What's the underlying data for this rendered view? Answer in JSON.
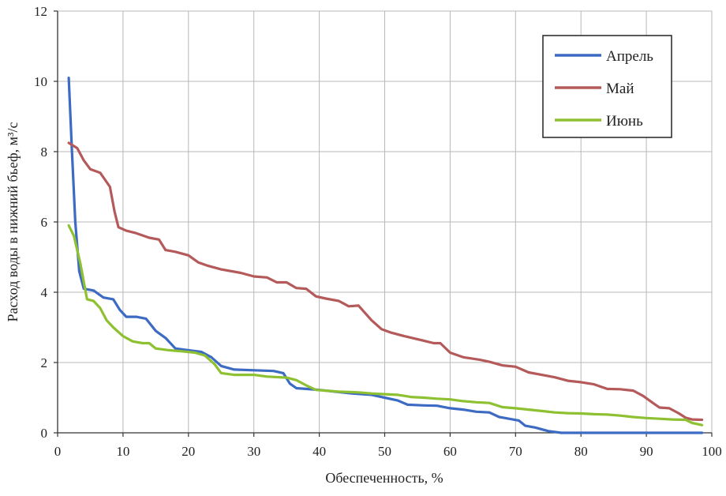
{
  "chart_data": {
    "type": "line",
    "title": "",
    "xlabel": "Обеспеченность, %",
    "ylabel": "Расход воды в нижний бьеф, м³/с",
    "xlim": [
      0,
      100
    ],
    "ylim": [
      0,
      12
    ],
    "xticks": [
      0,
      10,
      20,
      30,
      40,
      50,
      60,
      70,
      80,
      90,
      100
    ],
    "yticks": [
      0,
      2,
      4,
      6,
      8,
      10,
      12
    ],
    "grid": true,
    "legend_position": "top-right",
    "series": [
      {
        "name": "Апрель",
        "color": "#3d6bc4",
        "points": [
          [
            1.7,
            10.1
          ],
          [
            2.2,
            8.0
          ],
          [
            2.7,
            6.0
          ],
          [
            3.3,
            4.6
          ],
          [
            4.0,
            4.1
          ],
          [
            5.5,
            4.05
          ],
          [
            7.0,
            3.85
          ],
          [
            8.5,
            3.8
          ],
          [
            9.5,
            3.5
          ],
          [
            10.5,
            3.3
          ],
          [
            12.0,
            3.3
          ],
          [
            13.5,
            3.25
          ],
          [
            15.0,
            2.9
          ],
          [
            16.5,
            2.7
          ],
          [
            18.0,
            2.4
          ],
          [
            20.0,
            2.35
          ],
          [
            22.0,
            2.3
          ],
          [
            23.5,
            2.15
          ],
          [
            25.0,
            1.9
          ],
          [
            27.0,
            1.8
          ],
          [
            30.0,
            1.78
          ],
          [
            33.0,
            1.76
          ],
          [
            34.5,
            1.7
          ],
          [
            35.5,
            1.4
          ],
          [
            36.5,
            1.27
          ],
          [
            38.0,
            1.25
          ],
          [
            40.0,
            1.22
          ],
          [
            42.0,
            1.18
          ],
          [
            45.0,
            1.12
          ],
          [
            48.0,
            1.08
          ],
          [
            50.0,
            1.0
          ],
          [
            52.0,
            0.92
          ],
          [
            53.5,
            0.8
          ],
          [
            56.0,
            0.78
          ],
          [
            58.0,
            0.77
          ],
          [
            60.0,
            0.7
          ],
          [
            62.0,
            0.66
          ],
          [
            64.0,
            0.6
          ],
          [
            66.0,
            0.58
          ],
          [
            67.5,
            0.45
          ],
          [
            69.0,
            0.4
          ],
          [
            70.5,
            0.35
          ],
          [
            71.5,
            0.2
          ],
          [
            73.0,
            0.15
          ],
          [
            75.0,
            0.05
          ],
          [
            77.0,
            0.0
          ],
          [
            90.0,
            0.0
          ],
          [
            98.5,
            0.0
          ]
        ]
      },
      {
        "name": "Май",
        "color": "#b55a5a",
        "points": [
          [
            1.7,
            8.25
          ],
          [
            3.0,
            8.1
          ],
          [
            4.0,
            7.75
          ],
          [
            5.0,
            7.5
          ],
          [
            6.5,
            7.4
          ],
          [
            8.0,
            7.0
          ],
          [
            8.7,
            6.3
          ],
          [
            9.3,
            5.85
          ],
          [
            10.5,
            5.75
          ],
          [
            12.0,
            5.68
          ],
          [
            14.0,
            5.55
          ],
          [
            15.5,
            5.5
          ],
          [
            16.5,
            5.2
          ],
          [
            18.0,
            5.15
          ],
          [
            20.0,
            5.05
          ],
          [
            21.5,
            4.85
          ],
          [
            23.0,
            4.75
          ],
          [
            25.0,
            4.65
          ],
          [
            28.0,
            4.55
          ],
          [
            30.0,
            4.45
          ],
          [
            32.0,
            4.42
          ],
          [
            33.5,
            4.28
          ],
          [
            35.0,
            4.28
          ],
          [
            36.5,
            4.12
          ],
          [
            38.0,
            4.1
          ],
          [
            39.5,
            3.88
          ],
          [
            41.0,
            3.82
          ],
          [
            43.0,
            3.75
          ],
          [
            44.5,
            3.6
          ],
          [
            46.0,
            3.62
          ],
          [
            48.0,
            3.2
          ],
          [
            49.5,
            2.95
          ],
          [
            51.0,
            2.85
          ],
          [
            53.0,
            2.75
          ],
          [
            56.0,
            2.62
          ],
          [
            57.5,
            2.55
          ],
          [
            58.5,
            2.55
          ],
          [
            60.0,
            2.28
          ],
          [
            62.0,
            2.15
          ],
          [
            64.5,
            2.08
          ],
          [
            66.0,
            2.02
          ],
          [
            68.0,
            1.92
          ],
          [
            70.0,
            1.88
          ],
          [
            72.0,
            1.72
          ],
          [
            74.0,
            1.65
          ],
          [
            76.0,
            1.58
          ],
          [
            78.0,
            1.48
          ],
          [
            80.0,
            1.44
          ],
          [
            82.0,
            1.38
          ],
          [
            84.0,
            1.25
          ],
          [
            86.0,
            1.24
          ],
          [
            88.0,
            1.2
          ],
          [
            89.5,
            1.05
          ],
          [
            91.0,
            0.85
          ],
          [
            92.0,
            0.72
          ],
          [
            93.5,
            0.7
          ],
          [
            95.0,
            0.55
          ],
          [
            96.0,
            0.43
          ],
          [
            97.0,
            0.38
          ],
          [
            98.5,
            0.37
          ]
        ]
      },
      {
        "name": "Июнь",
        "color": "#8ec131",
        "points": [
          [
            1.7,
            5.9
          ],
          [
            2.5,
            5.6
          ],
          [
            3.5,
            4.8
          ],
          [
            4.5,
            3.8
          ],
          [
            5.5,
            3.75
          ],
          [
            6.5,
            3.55
          ],
          [
            7.5,
            3.2
          ],
          [
            8.5,
            3.0
          ],
          [
            10.0,
            2.75
          ],
          [
            11.5,
            2.6
          ],
          [
            13.0,
            2.55
          ],
          [
            14.0,
            2.55
          ],
          [
            15.0,
            2.4
          ],
          [
            17.0,
            2.35
          ],
          [
            19.0,
            2.32
          ],
          [
            21.0,
            2.28
          ],
          [
            22.5,
            2.2
          ],
          [
            24.0,
            1.95
          ],
          [
            25.0,
            1.7
          ],
          [
            27.0,
            1.65
          ],
          [
            30.0,
            1.65
          ],
          [
            32.0,
            1.6
          ],
          [
            35.0,
            1.57
          ],
          [
            36.5,
            1.5
          ],
          [
            38.0,
            1.35
          ],
          [
            39.5,
            1.22
          ],
          [
            41.0,
            1.2
          ],
          [
            43.0,
            1.17
          ],
          [
            46.0,
            1.15
          ],
          [
            48.0,
            1.12
          ],
          [
            50.0,
            1.1
          ],
          [
            52.0,
            1.08
          ],
          [
            54.0,
            1.02
          ],
          [
            56.0,
            1.0
          ],
          [
            58.0,
            0.97
          ],
          [
            60.0,
            0.95
          ],
          [
            62.0,
            0.9
          ],
          [
            64.0,
            0.87
          ],
          [
            66.0,
            0.85
          ],
          [
            68.0,
            0.73
          ],
          [
            70.0,
            0.7
          ],
          [
            72.0,
            0.66
          ],
          [
            74.0,
            0.62
          ],
          [
            76.0,
            0.58
          ],
          [
            78.0,
            0.56
          ],
          [
            80.0,
            0.55
          ],
          [
            82.0,
            0.53
          ],
          [
            84.0,
            0.52
          ],
          [
            86.0,
            0.49
          ],
          [
            88.0,
            0.45
          ],
          [
            90.0,
            0.42
          ],
          [
            92.0,
            0.4
          ],
          [
            94.0,
            0.38
          ],
          [
            96.0,
            0.37
          ],
          [
            97.0,
            0.28
          ],
          [
            98.5,
            0.22
          ]
        ]
      }
    ]
  }
}
